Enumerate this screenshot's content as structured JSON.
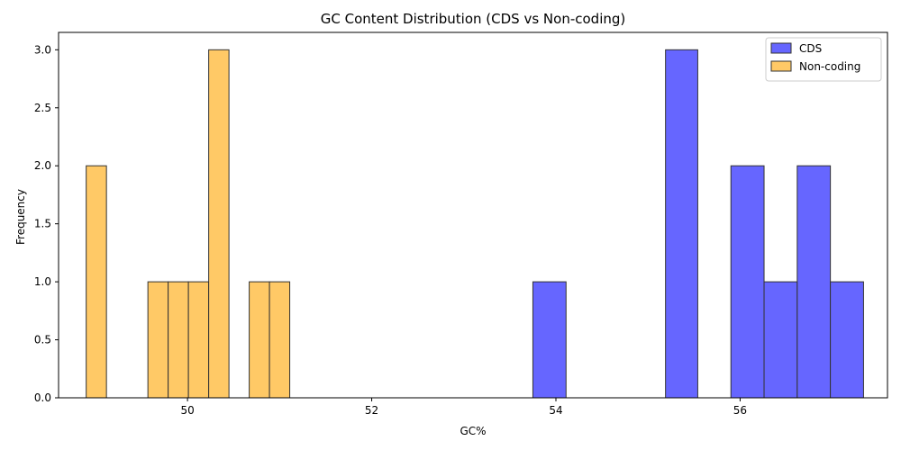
{
  "chart_data": {
    "type": "bar",
    "title": "GC Content Distribution (CDS vs Non-coding)",
    "xlabel": "GC%",
    "ylabel": "Frequency",
    "xlim": [
      48.6,
      57.6
    ],
    "ylim": [
      0,
      3.15
    ],
    "xticks": [
      50,
      52,
      54,
      56
    ],
    "yticks": [
      0.0,
      0.5,
      1.0,
      1.5,
      2.0,
      2.5,
      3.0
    ],
    "xtick_labels": [
      "50",
      "52",
      "54",
      "56"
    ],
    "ytick_labels": [
      "0.0",
      "0.5",
      "1.0",
      "1.5",
      "2.0",
      "2.5",
      "3.0"
    ],
    "legend_position": "top-right",
    "grid": false,
    "series": [
      {
        "name": "CDS",
        "color": "#6666ff",
        "bins": [
          {
            "x0": 53.75,
            "x1": 54.11,
            "count": 1
          },
          {
            "x0": 55.19,
            "x1": 55.54,
            "count": 3
          },
          {
            "x0": 55.9,
            "x1": 56.26,
            "count": 2
          },
          {
            "x0": 56.26,
            "x1": 56.62,
            "count": 1
          },
          {
            "x0": 56.62,
            "x1": 56.98,
            "count": 2
          },
          {
            "x0": 56.98,
            "x1": 57.34,
            "count": 1
          }
        ]
      },
      {
        "name": "Non-coding",
        "color": "#ffc966",
        "bins": [
          {
            "x0": 48.9,
            "x1": 49.12,
            "count": 2
          },
          {
            "x0": 49.57,
            "x1": 49.79,
            "count": 1
          },
          {
            "x0": 49.79,
            "x1": 50.01,
            "count": 1
          },
          {
            "x0": 50.01,
            "x1": 50.23,
            "count": 1
          },
          {
            "x0": 50.23,
            "x1": 50.45,
            "count": 3
          },
          {
            "x0": 50.67,
            "x1": 50.89,
            "count": 1
          },
          {
            "x0": 50.89,
            "x1": 51.11,
            "count": 1
          }
        ]
      }
    ]
  }
}
